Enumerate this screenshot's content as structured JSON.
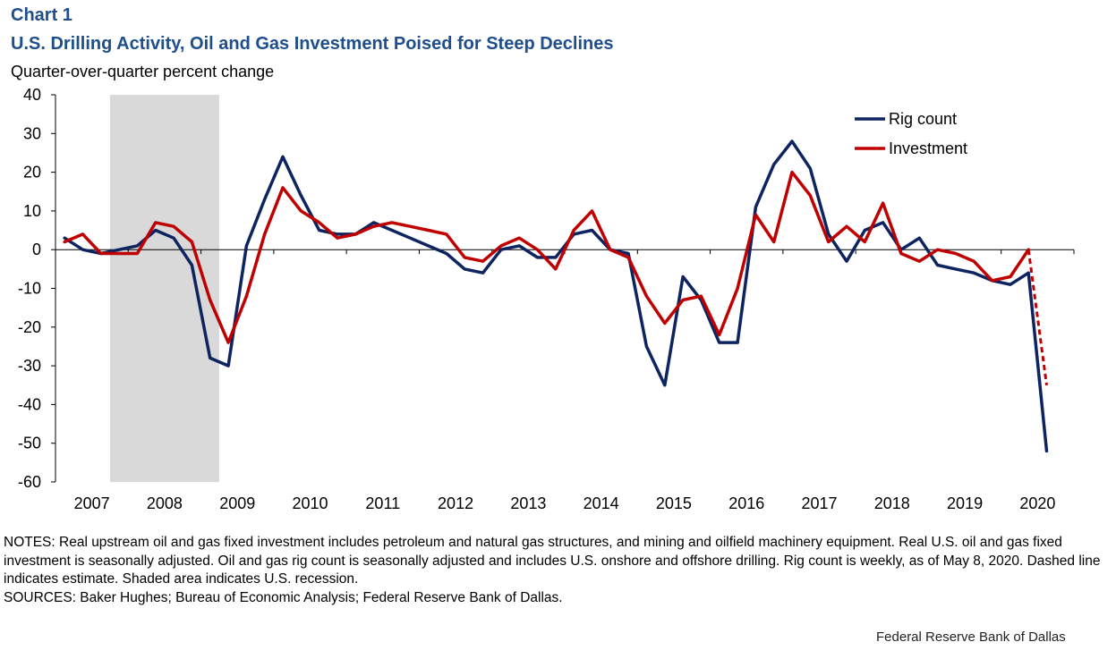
{
  "header": {
    "chart_label": "Chart 1",
    "title": "U.S. Drilling Activity, Oil and Gas Investment Poised for Steep Declines",
    "subtitle": "Quarter-over-quarter percent change"
  },
  "chart_data": {
    "type": "line",
    "title": "U.S. Drilling Activity, Oil and Gas Investment Poised for Steep Declines",
    "ylabel": "Quarter-over-quarter percent change",
    "xlabel": "",
    "ylim": [
      -60,
      40
    ],
    "yticks": [
      40,
      30,
      20,
      10,
      0,
      -10,
      -20,
      -30,
      -40,
      -50,
      -60
    ],
    "x_tick_labels": [
      "2007",
      "2008",
      "2009",
      "2010",
      "2011",
      "2012",
      "2013",
      "2014",
      "2015",
      "2016",
      "2017",
      "2018",
      "2019",
      "2020"
    ],
    "quarters_start": "2007Q1",
    "recession": {
      "start_quarter_index": 3,
      "end_quarter_index": 9,
      "label": "Shaded area indicates U.S. recession"
    },
    "legend": {
      "position": "top-right"
    },
    "series": [
      {
        "name": "Rig count",
        "color": "#0d2460",
        "values": [
          3,
          0,
          -1,
          0,
          1,
          5,
          3,
          -4,
          -28,
          -30,
          1,
          13,
          24,
          14,
          5,
          4,
          4,
          7,
          5,
          3,
          1,
          -1,
          -5,
          -6,
          0,
          1,
          -2,
          -2,
          4,
          5,
          0,
          -1,
          -25,
          -35,
          -7,
          -13,
          -24,
          -24,
          11,
          22,
          28,
          21,
          4,
          -3,
          5,
          7,
          0,
          3,
          -4,
          -5,
          -6,
          -8,
          -9,
          -6,
          -52
        ],
        "dashed_from_index": null
      },
      {
        "name": "Investment",
        "color": "#c00000",
        "values": [
          2,
          4,
          -1,
          -1,
          -1,
          7,
          6,
          2,
          -13,
          -24,
          -12,
          4,
          16,
          10,
          7,
          3,
          4,
          6,
          7,
          6,
          5,
          4,
          -2,
          -3,
          1,
          3,
          0,
          -5,
          5,
          10,
          0,
          -2,
          -12,
          -19,
          -13,
          -12,
          -22,
          -10,
          9,
          2,
          20,
          14,
          2,
          6,
          2,
          12,
          -1,
          -3,
          0,
          -1,
          -3,
          -8,
          -7,
          0,
          -35
        ],
        "dashed_from_index": 53
      }
    ]
  },
  "notes": {
    "notes_text": "NOTES: Real upstream oil and gas fixed investment includes petroleum and natural gas structures, and mining and oilfield machinery equipment. Real U.S. oil and gas fixed investment is seasonally adjusted. Oil and gas rig count is seasonally adjusted and includes U.S. onshore and offshore drilling. Rig count is weekly, as of May 8, 2020. Dashed line indicates estimate. Shaded area indicates U.S. recession.",
    "sources_text": "SOURCES: Baker Hughes; Bureau of Economic Analysis; Federal Reserve Bank of Dallas."
  },
  "footer": {
    "credit": "Federal Reserve  Bank of Dallas"
  }
}
